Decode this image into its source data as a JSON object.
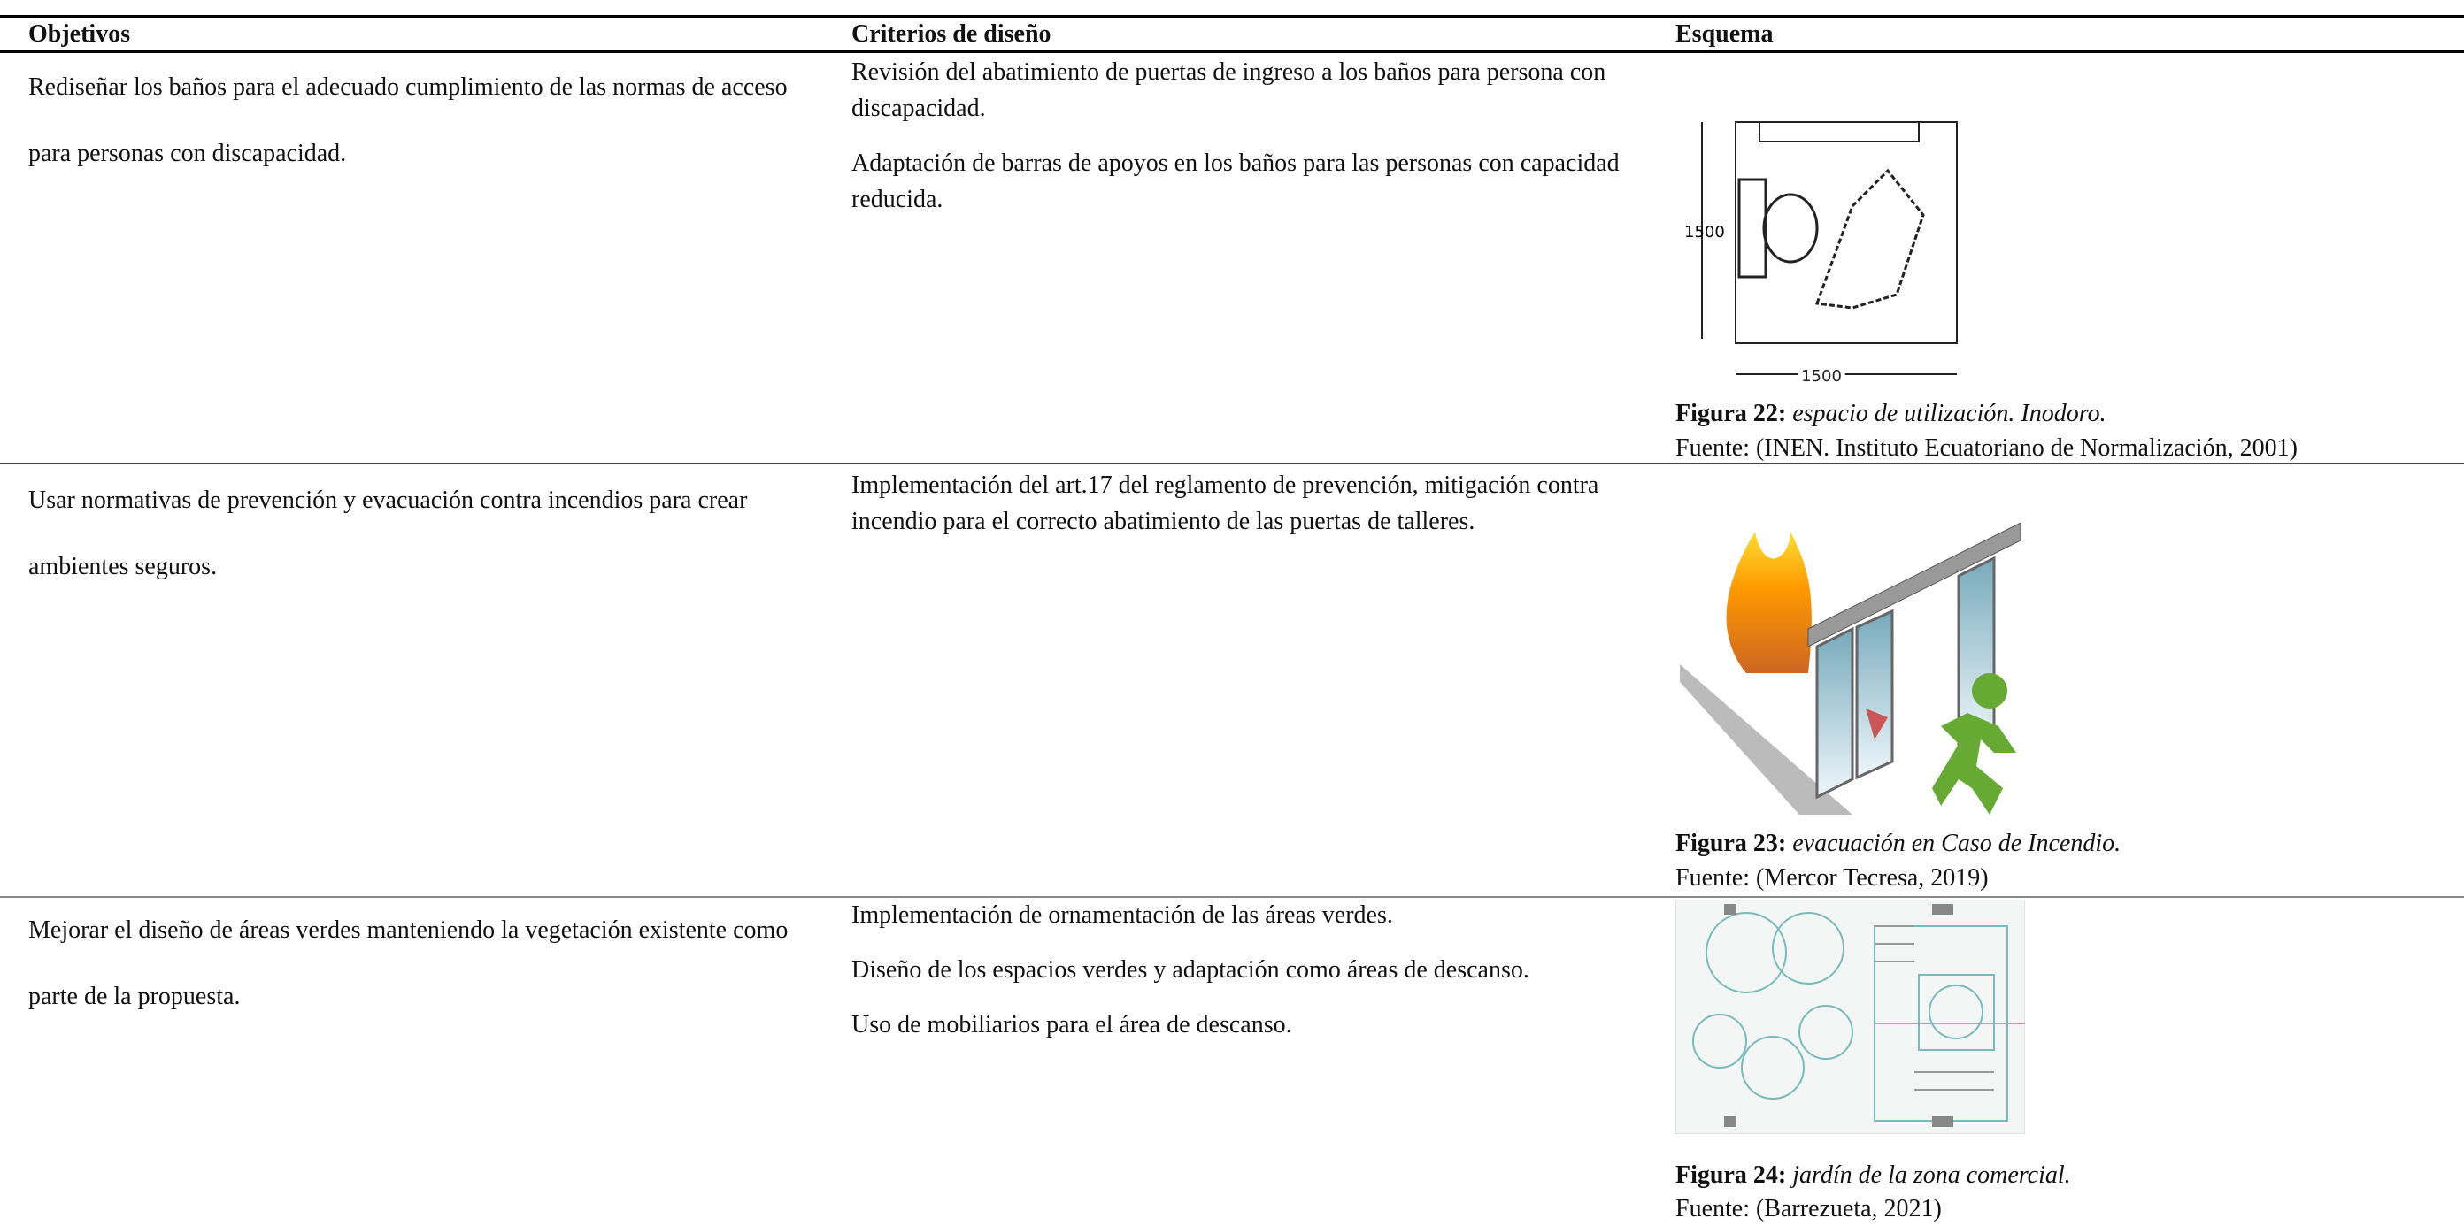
{
  "table": {
    "headers": [
      "Objetivos",
      "Criterios de diseño",
      "Esquema"
    ],
    "rows": [
      {
        "objective": "Rediseñar los baños para el adecuado cumplimiento de las normas de acceso para personas con discapacidad.",
        "criteria": [
          "Revisión del abatimiento de puertas de ingreso a los baños para persona con discapacidad.",
          "Adaptación de barras de apoyos en los baños para las personas con capacidad reducida."
        ],
        "figure": {
          "dimension": "1500",
          "label": "Figura 22:",
          "caption": "espacio de utilización. Inodoro.",
          "source": "Fuente: (INEN. Instituto Ecuatoriano de Normalización,  2001)"
        }
      },
      {
        "objective": "Usar normativas de prevención y evacuación contra incendios para crear ambientes seguros.",
        "criteria": [
          "Implementación del art.17 del reglamento de prevención, mitigación contra incendio para el correcto abatimiento de las puertas de talleres."
        ],
        "figure": {
          "label": "Figura 23:",
          "caption": "evacuación en Caso de Incendio.",
          "source": "Fuente: (Mercor Tecresa, 2019)"
        }
      },
      {
        "objective": "Mejorar el diseño de áreas verdes manteniendo la vegetación existente como parte de la propuesta.",
        "criteria": [
          "Implementación de ornamentación de las áreas verdes.",
          "Diseño de los espacios verdes y adaptación como áreas de descanso.",
          "Uso de mobiliarios  para el área de descanso."
        ],
        "figure": {
          "label": "Figura 24:",
          "caption": "jardín de la zona comercial.",
          "source": "Fuente: (Barrezueta, 2021)"
        }
      }
    ]
  }
}
